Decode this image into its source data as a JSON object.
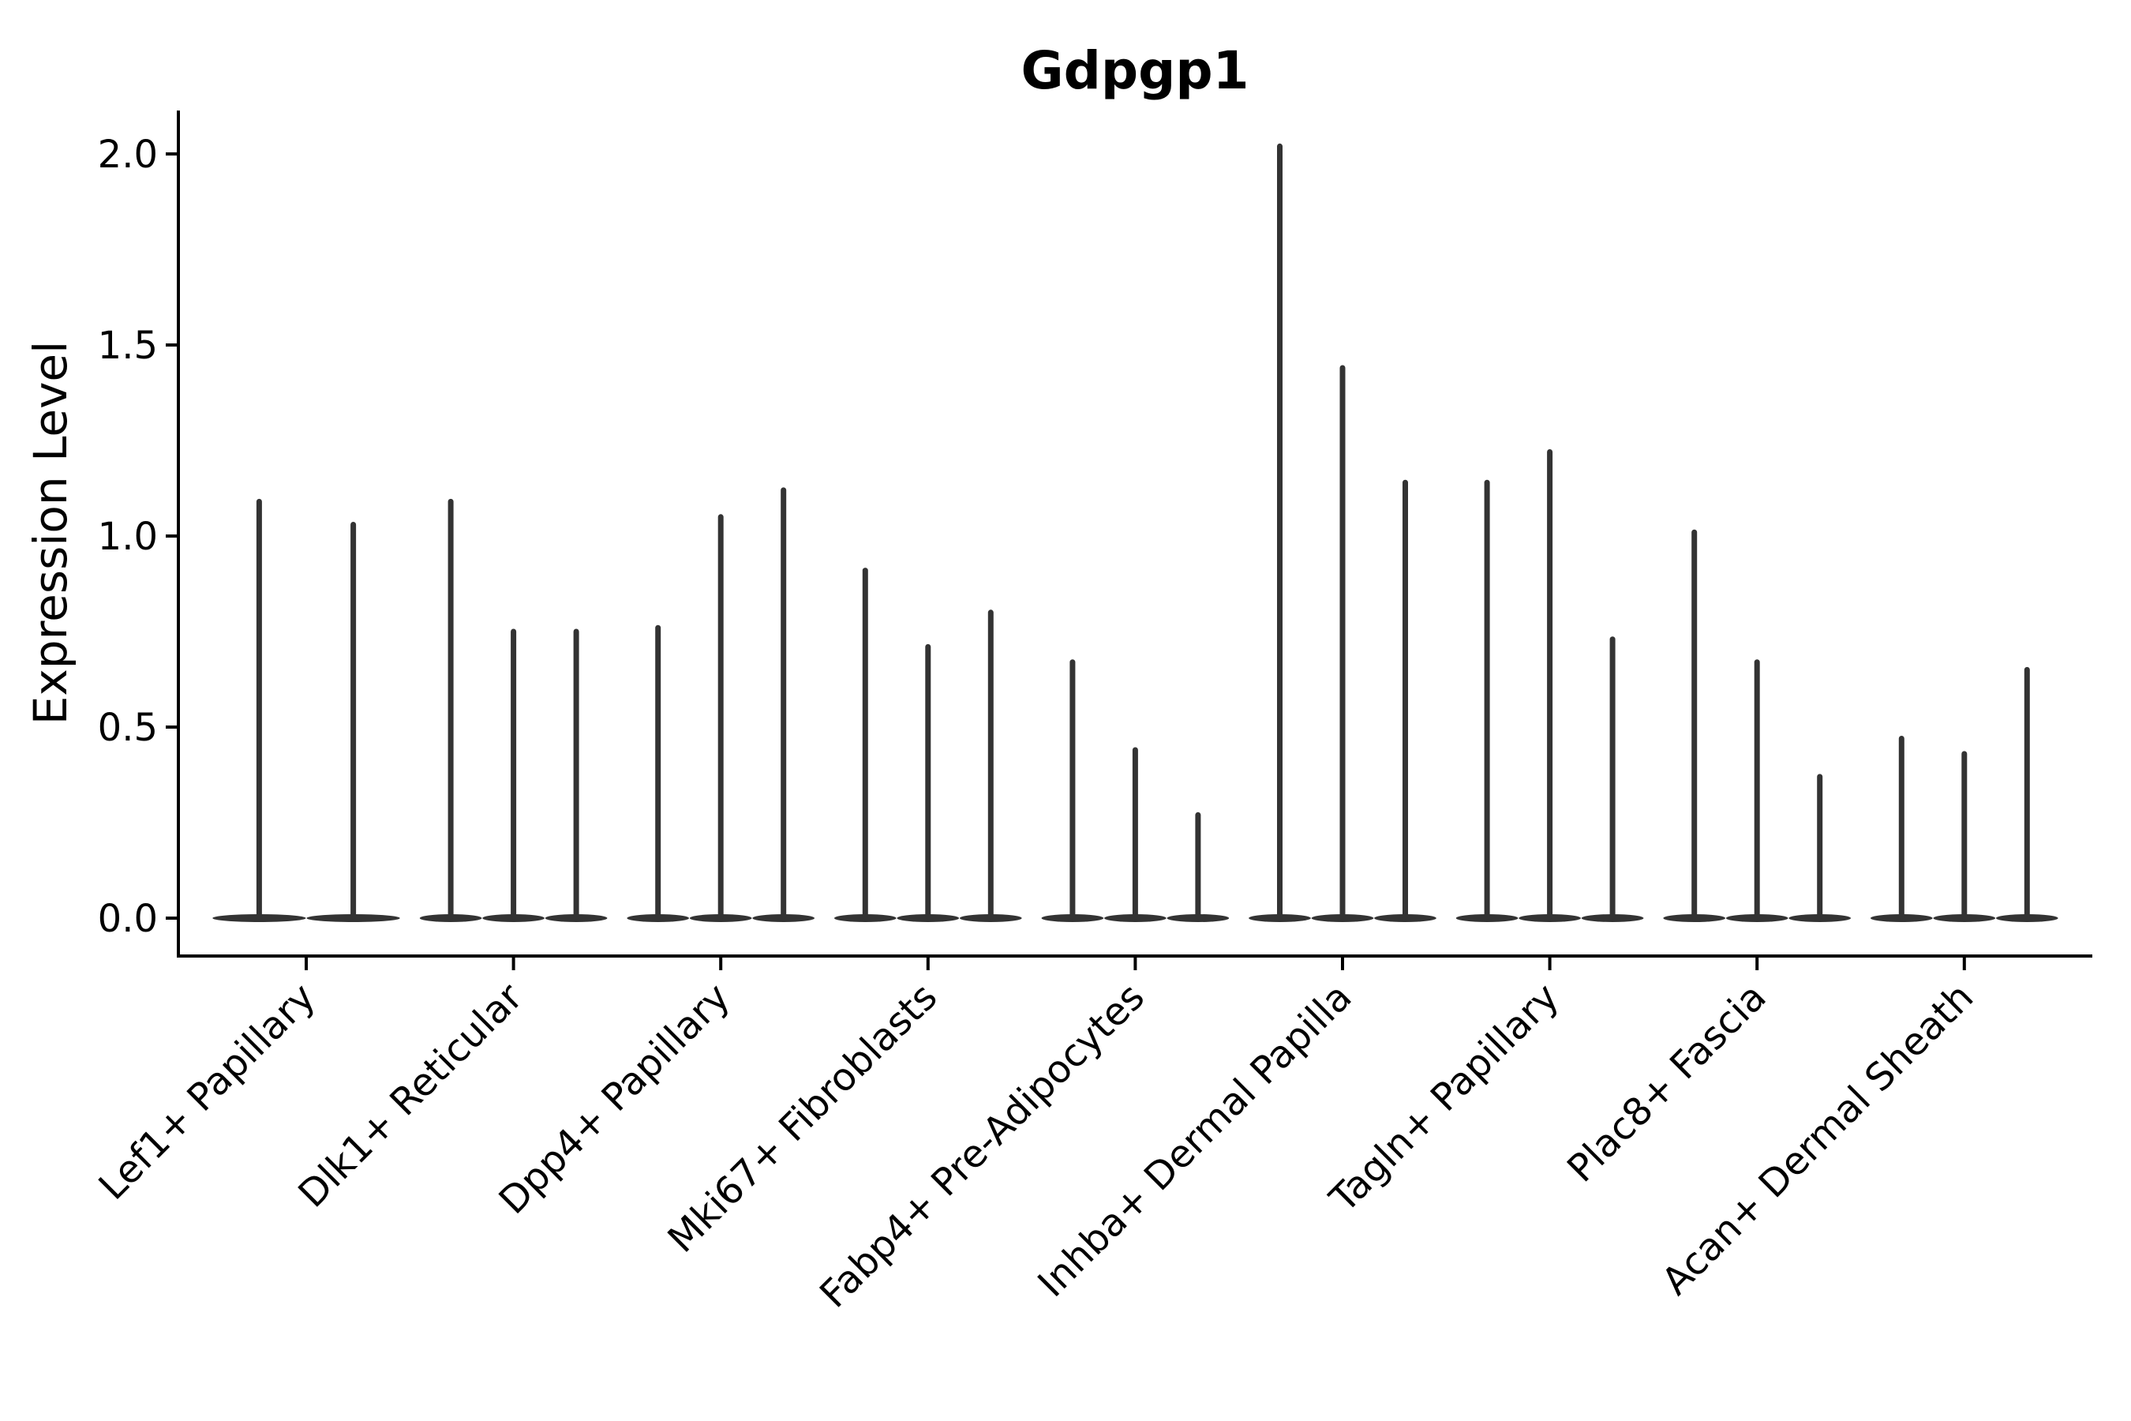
{
  "chart_data": {
    "type": "violin",
    "title": "Gdpgp1",
    "ylabel": "Expression Level",
    "xlabel": "",
    "ylim": [
      -0.1,
      2.12
    ],
    "yticks": [
      0.0,
      0.5,
      1.0,
      1.5,
      2.0
    ],
    "ytick_labels": [
      "0.0",
      "0.5",
      "1.0",
      "1.5",
      "2.0"
    ],
    "grid": false,
    "legend_position": "none",
    "categories": [
      "Lef1+ Papillary",
      "Dlk1+ Reticular",
      "Dpp4+ Papillary",
      "Mki67+ Fibroblasts",
      "Fabp4+ Pre-Adipocytes",
      "Inhba+ Dermal Papilla",
      "Tagln+ Papillary",
      "Plac8+ Fascia",
      "Acan+ Dermal Sheath"
    ],
    "groups": [
      {
        "label": "Lef1+ Papillary",
        "violin_maxima": [
          1.09,
          1.03
        ]
      },
      {
        "label": "Dlk1+ Reticular",
        "violin_maxima": [
          1.09,
          0.75,
          0.75
        ]
      },
      {
        "label": "Dpp4+ Papillary",
        "violin_maxima": [
          0.76,
          1.05,
          1.12
        ]
      },
      {
        "label": "Mki67+ Fibroblasts",
        "violin_maxima": [
          0.91,
          0.71,
          0.8
        ]
      },
      {
        "label": "Fabp4+ Pre-Adipocytes",
        "violin_maxima": [
          0.67,
          0.44,
          0.27
        ]
      },
      {
        "label": "Inhba+ Dermal Papilla",
        "violin_maxima": [
          2.02,
          1.44,
          1.14
        ]
      },
      {
        "label": "Tagln+ Papillary",
        "violin_maxima": [
          1.14,
          1.22,
          0.73
        ]
      },
      {
        "label": "Plac8+ Fascia",
        "violin_maxima": [
          1.01,
          0.67,
          0.37
        ]
      },
      {
        "label": "Acan+ Dermal Sheath",
        "violin_maxima": [
          0.47,
          0.43,
          0.65
        ]
      }
    ],
    "colors": {
      "violin": "#333333",
      "axis": "#000000",
      "text": "#000000",
      "background": "#ffffff"
    }
  }
}
